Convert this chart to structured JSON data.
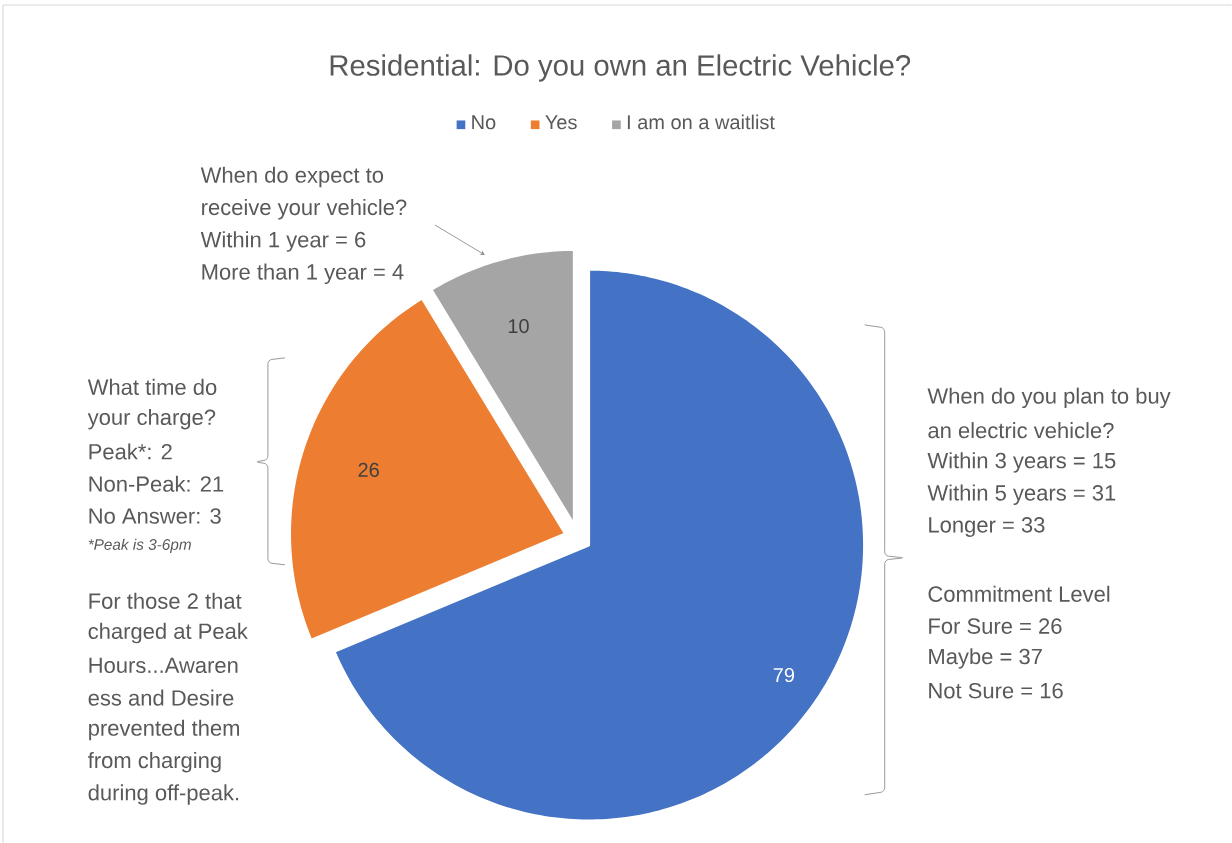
{
  "chart_data": {
    "type": "pie",
    "title": "Residential: Do you own an Electric Vehicle?",
    "categories": [
      "No",
      "Yes",
      "I am on a waitlist"
    ],
    "values": [
      79,
      26,
      10
    ],
    "colors": [
      "#4472c4",
      "#ed7d31",
      "#a5a5a5"
    ],
    "data_labels": true,
    "legend": "top",
    "annotations": [
      "When do expect to",
      "receive your vehicle?",
      "Within 1 year = 6",
      "More than 1 year = 4",
      "What time do",
      "your charge?",
      "Peak*: 2",
      "Non-Peak: 21",
      "No Answer: 3",
      "*Peak is 3-6pm",
      "For those 2 that",
      "charged at Peak",
      "Hours...Awaren",
      "ess and Desire",
      "prevented them",
      "from charging",
      "during off-peak.",
      "When do you plan to buy",
      "an electric vehicle?",
      "Within 3 years = 15",
      "Within 5 years = 31",
      "Longer = 33",
      "Commitment Level",
      "For Sure = 26",
      "Maybe = 37",
      "Not Sure = 16"
    ]
  }
}
